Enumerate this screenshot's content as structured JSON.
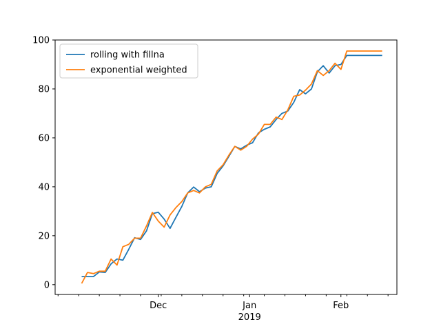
{
  "chart_data": {
    "type": "line",
    "title": "",
    "xlabel": "",
    "ylabel": "",
    "x_axis": {
      "type": "date",
      "range": [
        "2018-10-27",
        "2019-02-20"
      ],
      "major_ticks": [
        {
          "date": "2018-12-01",
          "label": "Dec"
        },
        {
          "date": "2019-01-01",
          "label": "Jan",
          "sublabel": "2019"
        },
        {
          "date": "2019-02-01",
          "label": "Feb"
        }
      ]
    },
    "ylim": [
      -4,
      100
    ],
    "y_ticks": [
      0,
      20,
      40,
      60,
      80,
      100
    ],
    "grid": false,
    "legend": {
      "placement": "top-left"
    },
    "colors": {
      "rolling with fillna": "#1f77b4",
      "exponential weighted": "#ff7f0e"
    },
    "x": [
      "2018-11-05",
      "2018-11-07",
      "2018-11-09",
      "2018-11-11",
      "2018-11-13",
      "2018-11-15",
      "2018-11-17",
      "2018-11-19",
      "2018-11-21",
      "2018-11-23",
      "2018-11-25",
      "2018-11-27",
      "2018-11-29",
      "2018-12-01",
      "2018-12-03",
      "2018-12-05",
      "2018-12-07",
      "2018-12-09",
      "2018-12-11",
      "2018-12-13",
      "2018-12-15",
      "2018-12-17",
      "2018-12-19",
      "2018-12-21",
      "2018-12-23",
      "2018-12-25",
      "2018-12-27",
      "2018-12-29",
      "2018-12-31",
      "2019-01-02",
      "2019-01-04",
      "2019-01-06",
      "2019-01-08",
      "2019-01-10",
      "2019-01-12",
      "2019-01-14",
      "2019-01-16",
      "2019-01-18",
      "2019-01-20",
      "2019-01-22",
      "2019-01-24",
      "2019-01-26",
      "2019-01-28",
      "2019-01-30",
      "2019-02-01",
      "2019-02-03",
      "2019-02-05",
      "2019-02-07",
      "2019-02-09",
      "2019-02-11",
      "2019-02-13",
      "2019-02-15"
    ],
    "series": [
      {
        "name": "rolling with fillna",
        "values": [
          3.3,
          3.3,
          3.3,
          5.2,
          5.0,
          8.5,
          10.5,
          10.0,
          14.5,
          19.2,
          18.5,
          22.0,
          29.0,
          29.6,
          26.8,
          23.0,
          27.5,
          32.0,
          37.5,
          39.9,
          38.0,
          39.5,
          40.0,
          45.5,
          48.5,
          52.5,
          56.5,
          55.5,
          57.0,
          58.0,
          62.0,
          63.5,
          64.5,
          67.5,
          70.0,
          71.0,
          74.5,
          79.7,
          78.0,
          80.0,
          87.0,
          89.5,
          86.5,
          89.5,
          90.0,
          93.7,
          93.7,
          93.7,
          93.7,
          93.7,
          93.7,
          93.7
        ]
      },
      {
        "name": "exponential weighted",
        "values": [
          0.5,
          5.0,
          4.5,
          5.5,
          5.5,
          10.5,
          8.0,
          15.5,
          16.5,
          19.0,
          19.0,
          24.0,
          29.5,
          26.0,
          23.5,
          28.5,
          31.5,
          34.0,
          37.5,
          38.5,
          37.5,
          40.0,
          41.0,
          46.5,
          49.0,
          53.0,
          56.5,
          55.0,
          56.5,
          59.5,
          61.5,
          65.5,
          65.5,
          68.5,
          67.5,
          71.5,
          77.0,
          77.5,
          79.5,
          82.0,
          87.5,
          85.5,
          87.5,
          90.5,
          88.0,
          95.5,
          95.5,
          95.5,
          95.5,
          95.5,
          95.5,
          95.5
        ]
      }
    ]
  }
}
